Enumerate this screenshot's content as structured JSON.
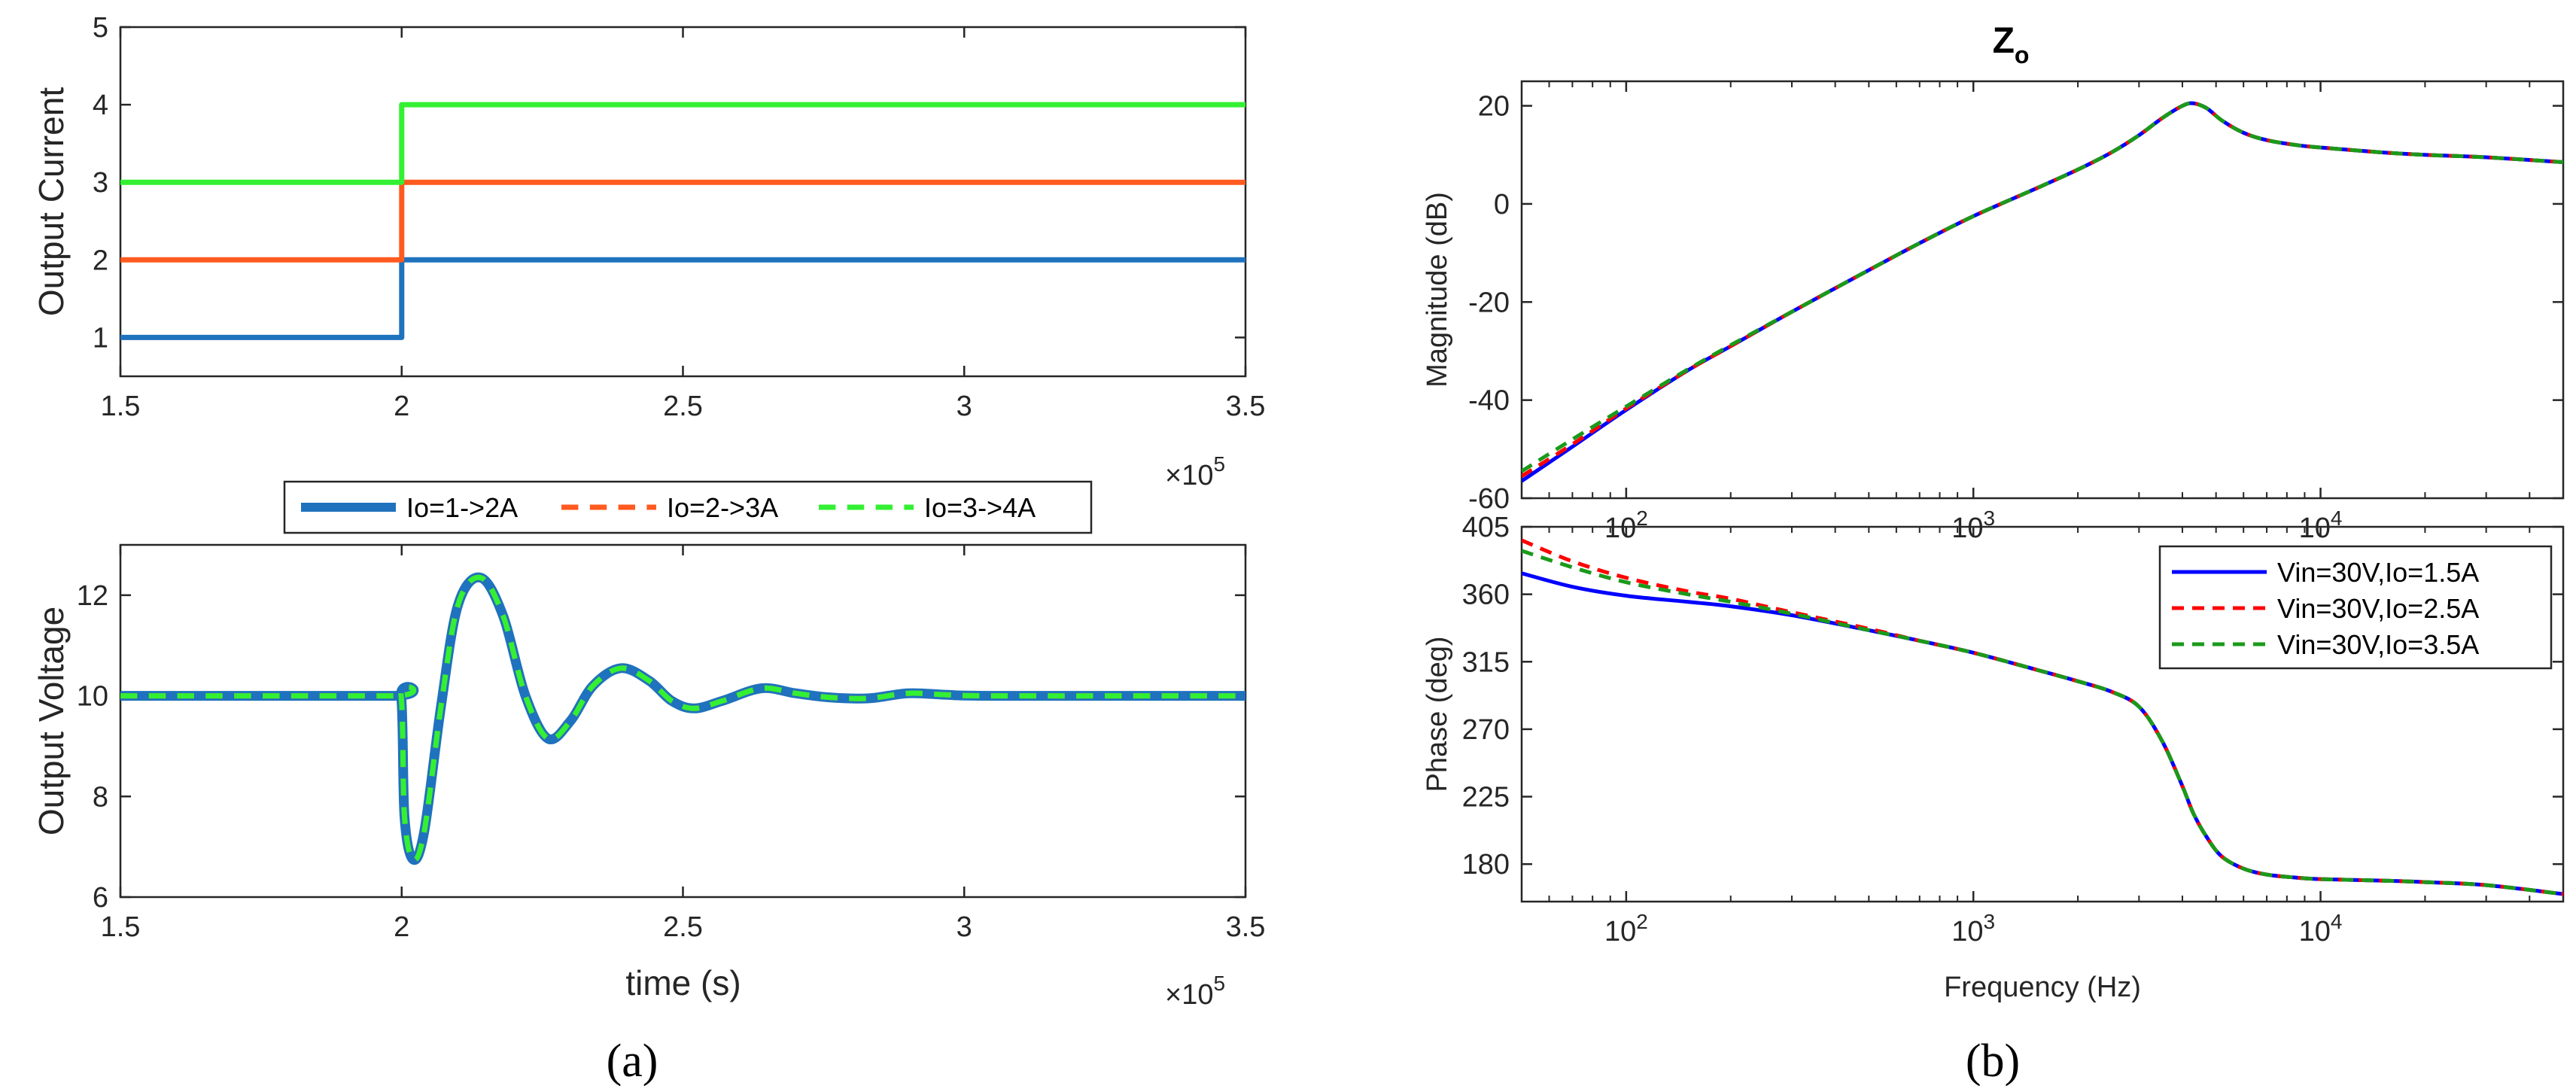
{
  "panels": {
    "a": {
      "label": "(a)"
    },
    "b": {
      "label": "(b)"
    }
  },
  "chart_data": [
    {
      "id": "output-current",
      "type": "line",
      "title": "",
      "xlabel": "",
      "ylabel": "Output Current",
      "x_multiplier": "×10",
      "x_multiplier_exp": "5",
      "xlim": [
        1.5,
        3.5
      ],
      "ylim": [
        0.5,
        5
      ],
      "xticks": [
        1.5,
        2,
        2.5,
        3,
        3.5
      ],
      "xtick_labels": [
        "1.5",
        "2",
        "2.5",
        "3",
        "3.5"
      ],
      "yticks": [
        1,
        2,
        3,
        4,
        5
      ],
      "ytick_labels": [
        "1",
        "2",
        "3",
        "4",
        "5"
      ],
      "series": [
        {
          "name": "Io=1->2A",
          "color": "#1f72bd",
          "x": [
            1.5,
            2.0,
            2.0,
            3.5
          ],
          "y": [
            1,
            1,
            2,
            2
          ]
        },
        {
          "name": "Io=2->3A",
          "color": "#ff5a1f",
          "x": [
            1.5,
            2.0,
            2.0,
            3.5
          ],
          "y": [
            2,
            2,
            3,
            3
          ]
        },
        {
          "name": "Io=3->4A",
          "color": "#33f033",
          "x": [
            1.5,
            2.0,
            2.0,
            3.5
          ],
          "y": [
            3,
            3,
            4,
            4
          ]
        }
      ]
    },
    {
      "id": "output-voltage",
      "type": "line",
      "title": "",
      "xlabel": "time (s)",
      "ylabel": "Output Voltage",
      "x_multiplier": "×10",
      "x_multiplier_exp": "5",
      "xlim": [
        1.5,
        3.5
      ],
      "ylim": [
        6,
        13
      ],
      "xticks": [
        1.5,
        2,
        2.5,
        3,
        3.5
      ],
      "xtick_labels": [
        "1.5",
        "2",
        "2.5",
        "3",
        "3.5"
      ],
      "yticks": [
        6,
        8,
        10,
        12
      ],
      "ytick_labels": [
        "6",
        "8",
        "10",
        "12"
      ],
      "legend": {
        "position": "top-outside",
        "entries": [
          {
            "name": "Io=1->2A",
            "color": "#1f72bd",
            "style": "solid"
          },
          {
            "name": "Io=2->3A",
            "color": "#ff5a1f",
            "style": "dashed"
          },
          {
            "name": "Io=3->4A",
            "color": "#33f033",
            "style": "dashed"
          }
        ]
      },
      "series": [
        {
          "name": "Io=1->2A",
          "color": "#1f72bd",
          "style": "solid",
          "x": [
            1.5,
            1.98,
            1.999,
            2.005,
            2.02,
            2.04,
            2.07,
            2.1,
            2.14,
            2.18,
            2.22,
            2.26,
            2.3,
            2.34,
            2.39,
            2.44,
            2.48,
            2.52,
            2.57,
            2.64,
            2.7,
            2.76,
            2.83,
            2.9,
            2.97,
            3.05,
            3.5
          ],
          "y": [
            10,
            10,
            10,
            7.6,
            6.75,
            7.3,
            9.8,
            11.8,
            12.35,
            11.6,
            10.0,
            9.15,
            9.5,
            10.2,
            10.55,
            10.3,
            9.9,
            9.75,
            9.9,
            10.15,
            10.05,
            9.97,
            9.95,
            10.05,
            10.02,
            10.0,
            10.0
          ]
        },
        {
          "name": "Io=2->3A",
          "color": "#ff5a1f",
          "style": "dashed",
          "x": [
            1.5,
            1.98,
            1.999,
            2.005,
            2.02,
            2.04,
            2.07,
            2.1,
            2.14,
            2.18,
            2.22,
            2.26,
            2.3,
            2.34,
            2.39,
            2.44,
            2.48,
            2.52,
            2.57,
            2.64,
            2.7,
            2.76,
            2.83,
            2.9,
            2.97,
            3.05,
            3.5
          ],
          "y": [
            10,
            10,
            10,
            7.6,
            6.75,
            7.3,
            9.8,
            11.8,
            12.35,
            11.6,
            10.0,
            9.15,
            9.5,
            10.2,
            10.55,
            10.3,
            9.9,
            9.75,
            9.9,
            10.15,
            10.05,
            9.97,
            9.95,
            10.05,
            10.02,
            10.0,
            10.0
          ]
        },
        {
          "name": "Io=3->4A",
          "color": "#33f033",
          "style": "dashed",
          "x": [
            1.5,
            1.98,
            1.999,
            2.005,
            2.02,
            2.04,
            2.07,
            2.1,
            2.14,
            2.18,
            2.22,
            2.26,
            2.3,
            2.34,
            2.39,
            2.44,
            2.48,
            2.52,
            2.57,
            2.64,
            2.7,
            2.76,
            2.83,
            2.9,
            2.97,
            3.05,
            3.5
          ],
          "y": [
            10,
            10,
            10,
            7.6,
            6.75,
            7.3,
            9.8,
            11.8,
            12.35,
            11.6,
            10.0,
            9.15,
            9.5,
            10.2,
            10.55,
            10.3,
            9.9,
            9.75,
            9.9,
            10.15,
            10.05,
            9.97,
            9.95,
            10.05,
            10.02,
            10.0,
            10.0
          ]
        }
      ]
    },
    {
      "id": "zo-magnitude",
      "type": "line",
      "title": "Z",
      "title_subscript": "o",
      "xlabel": "",
      "ylabel": "Magnitude (dB)",
      "xscale": "log",
      "xlim": [
        50,
        50000
      ],
      "ylim": [
        -60,
        25
      ],
      "xticks": [
        100,
        1000,
        10000
      ],
      "yticks": [
        -60,
        -40,
        -20,
        0,
        20
      ],
      "ytick_labels": [
        "-60",
        "-40",
        "-20",
        "0",
        "20"
      ],
      "series": [
        {
          "name": "Vin=30V,Io=1.5A",
          "color": "#0000ff",
          "style": "solid",
          "x": [
            50,
            70,
            100,
            150,
            200,
            300,
            500,
            700,
            1000,
            1500,
            2000,
            2500,
            3000,
            3500,
            4000,
            4300,
            4700,
            5200,
            6000,
            7000,
            8500,
            10000,
            15000,
            20000,
            30000,
            50000
          ],
          "y": [
            -56.5,
            -49.5,
            -42,
            -34,
            -29,
            -22,
            -13.5,
            -8,
            -2.5,
            3,
            7,
            10.5,
            14,
            17.5,
            20,
            20.5,
            19.5,
            17,
            14.5,
            13,
            12,
            11.5,
            10.5,
            10,
            9.5,
            8.5
          ]
        },
        {
          "name": "Vin=30V,Io=2.5A",
          "color": "#ff0000",
          "style": "dashed",
          "x": [
            50,
            70,
            100,
            150,
            200,
            300,
            500,
            700,
            1000,
            1500,
            2000,
            2500,
            3000,
            3500,
            4000,
            4300,
            4700,
            5200,
            6000,
            7000,
            8500,
            10000,
            15000,
            20000,
            30000,
            50000
          ],
          "y": [
            -55.5,
            -49,
            -41.7,
            -34,
            -29,
            -22,
            -13.5,
            -8,
            -2.5,
            3,
            7,
            10.5,
            14,
            17.5,
            20,
            20.5,
            19.5,
            17,
            14.5,
            13,
            12,
            11.5,
            10.5,
            10,
            9.5,
            8.5
          ]
        },
        {
          "name": "Vin=30V,Io=3.5A",
          "color": "#1a9a1a",
          "style": "dashed",
          "x": [
            50,
            70,
            100,
            150,
            200,
            300,
            500,
            700,
            1000,
            1500,
            2000,
            2500,
            3000,
            3500,
            4000,
            4300,
            4700,
            5200,
            6000,
            7000,
            8500,
            10000,
            15000,
            20000,
            30000,
            50000
          ],
          "y": [
            -54.5,
            -48,
            -41.3,
            -33.8,
            -28.8,
            -22,
            -13.5,
            -8,
            -2.5,
            3,
            7,
            10.5,
            14,
            17.5,
            20,
            20.5,
            19.5,
            17,
            14.5,
            13,
            12,
            11.5,
            10.5,
            10,
            9.5,
            8.5
          ]
        }
      ]
    },
    {
      "id": "zo-phase",
      "type": "line",
      "title": "",
      "xlabel": "Frequency  (Hz)",
      "ylabel": "Phase (deg)",
      "xscale": "log",
      "xlim": [
        50,
        50000
      ],
      "ylim": [
        155,
        405
      ],
      "xticks": [
        100,
        1000,
        10000
      ],
      "yticks": [
        180,
        225,
        270,
        315,
        360,
        405
      ],
      "ytick_labels": [
        "180",
        "225",
        "270",
        "315",
        "360",
        "405"
      ],
      "legend": {
        "position": "top-right",
        "entries": [
          {
            "name": "Vin=30V,Io=1.5A",
            "color": "#0000ff",
            "style": "solid"
          },
          {
            "name": "Vin=30V,Io=2.5A",
            "color": "#ff0000",
            "style": "dashed"
          },
          {
            "name": "Vin=30V,Io=3.5A",
            "color": "#1a9a1a",
            "style": "dashed"
          }
        ]
      },
      "series": [
        {
          "name": "Vin=30V,Io=1.5A",
          "color": "#0000ff",
          "style": "solid",
          "x": [
            50,
            70,
            100,
            150,
            200,
            300,
            500,
            700,
            1000,
            1500,
            2000,
            2500,
            3000,
            3500,
            4000,
            4300,
            4700,
            5200,
            6000,
            7000,
            8500,
            10000,
            15000,
            20000,
            30000,
            50000
          ],
          "y": [
            374,
            365,
            359,
            355,
            352,
            346,
            336,
            329,
            321,
            310,
            302,
            295,
            285,
            262,
            232,
            214,
            198,
            185,
            177,
            173,
            171,
            170,
            169,
            168,
            166,
            160
          ]
        },
        {
          "name": "Vin=30V,Io=2.5A",
          "color": "#ff0000",
          "style": "dashed",
          "x": [
            50,
            70,
            100,
            150,
            200,
            300,
            500,
            700,
            1000,
            1500,
            2000,
            2500,
            3000,
            3500,
            4000,
            4300,
            4700,
            5200,
            6000,
            7000,
            8500,
            10000,
            15000,
            20000,
            30000,
            50000
          ],
          "y": [
            396,
            382,
            371,
            362,
            357,
            348,
            337,
            329,
            321,
            310,
            302,
            295,
            285,
            262,
            232,
            214,
            198,
            185,
            177,
            173,
            171,
            170,
            169,
            168,
            166,
            160
          ]
        },
        {
          "name": "Vin=30V,Io=3.5A",
          "color": "#1a9a1a",
          "style": "dashed",
          "x": [
            50,
            70,
            100,
            150,
            200,
            300,
            500,
            700,
            1000,
            1500,
            2000,
            2500,
            3000,
            3500,
            4000,
            4300,
            4700,
            5200,
            6000,
            7000,
            8500,
            10000,
            15000,
            20000,
            30000,
            50000
          ],
          "y": [
            389,
            378,
            368,
            360,
            355,
            347,
            336,
            329,
            321,
            310,
            302,
            295,
            285,
            262,
            232,
            214,
            198,
            185,
            177,
            173,
            171,
            170,
            169,
            168,
            166,
            160
          ]
        }
      ]
    }
  ]
}
